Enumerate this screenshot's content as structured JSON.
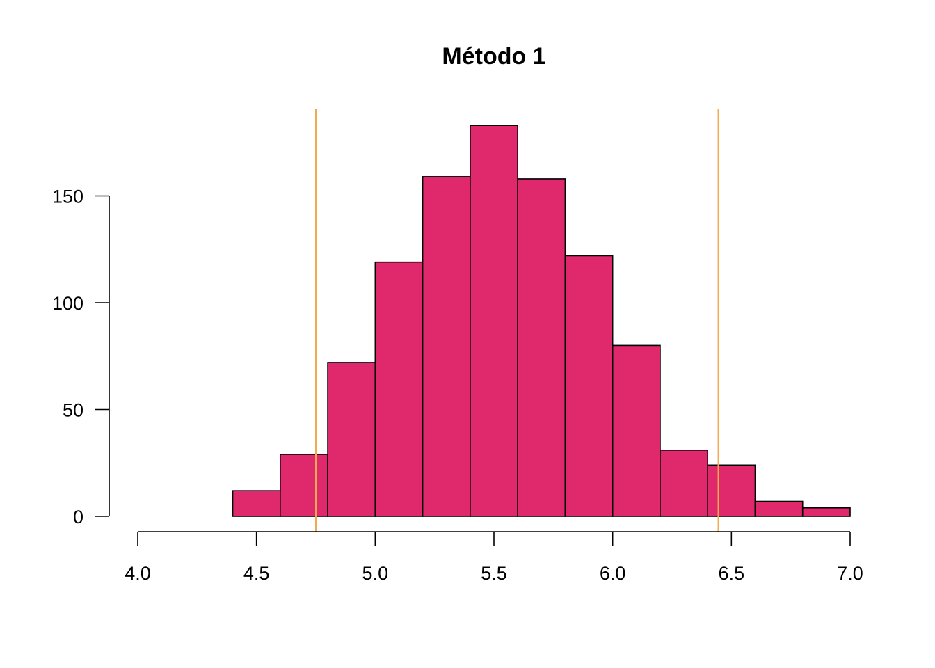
{
  "chart_data": {
    "type": "bar",
    "title": "Método 1",
    "xlabel": "",
    "ylabel": "",
    "xlim": [
      4.0,
      7.0
    ],
    "ylim": [
      0,
      190
    ],
    "x_ticks": [
      "4.0",
      "4.5",
      "5.0",
      "5.5",
      "6.0",
      "6.5",
      "7.0"
    ],
    "y_ticks": [
      "0",
      "50",
      "100",
      "150"
    ],
    "bins": [
      {
        "start": 4.4,
        "end": 4.6,
        "count": 12
      },
      {
        "start": 4.6,
        "end": 4.8,
        "count": 29
      },
      {
        "start": 4.8,
        "end": 5.0,
        "count": 72
      },
      {
        "start": 5.0,
        "end": 5.2,
        "count": 119
      },
      {
        "start": 5.2,
        "end": 5.4,
        "count": 159
      },
      {
        "start": 5.4,
        "end": 5.6,
        "count": 183
      },
      {
        "start": 5.6,
        "end": 5.8,
        "count": 158
      },
      {
        "start": 5.8,
        "end": 6.0,
        "count": 122
      },
      {
        "start": 6.0,
        "end": 6.2,
        "count": 80
      },
      {
        "start": 6.2,
        "end": 6.4,
        "count": 31
      },
      {
        "start": 6.4,
        "end": 6.6,
        "count": 24
      },
      {
        "start": 6.6,
        "end": 6.8,
        "count": 7
      },
      {
        "start": 6.8,
        "end": 7.0,
        "count": 4
      }
    ],
    "reference_lines": [
      4.75,
      6.445
    ],
    "grid": false,
    "colors": {
      "bar_fill": "#E0286D",
      "bar_border": "#000000",
      "reference_line": "#F5A94E"
    }
  }
}
